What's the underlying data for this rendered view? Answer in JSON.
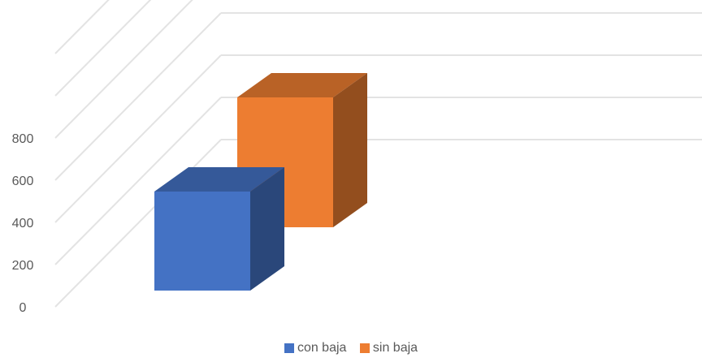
{
  "chart_data": {
    "type": "bar",
    "title": "",
    "xlabel": "",
    "ylabel": "",
    "ylim": [
      0,
      1200
    ],
    "yticks": [
      0,
      200,
      400,
      600,
      800
    ],
    "grid": true,
    "legend_position": "bottom",
    "series": [
      {
        "name": "con baja",
        "value": 600,
        "color": "#4472C4"
      },
      {
        "name": "sin baja",
        "value": 810,
        "color": "#ED7D31"
      }
    ]
  }
}
